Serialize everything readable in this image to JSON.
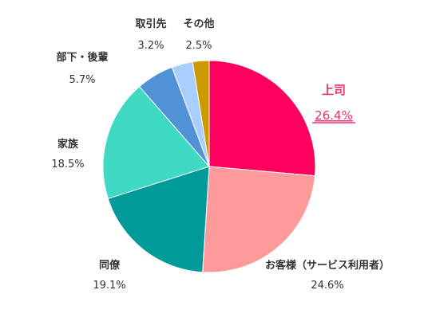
{
  "chart_data": {
    "type": "pie",
    "title": "",
    "start_angle": "12 o'clock",
    "direction": "clockwise",
    "highlight_color": "#e8336d",
    "slices": [
      {
        "label": "上司",
        "value": 26.4,
        "value_label": "26.4%",
        "color": "#ff005f",
        "highlight": true
      },
      {
        "label": "お客様（サービス利用者）",
        "value": 24.6,
        "value_label": "24.6%",
        "color": "#ff9a9a",
        "highlight": false
      },
      {
        "label": "同僚",
        "value": 19.1,
        "value_label": "19.1%",
        "color": "#009a99",
        "highlight": false
      },
      {
        "label": "家族",
        "value": 18.5,
        "value_label": "18.5%",
        "color": "#40d9c4",
        "highlight": false
      },
      {
        "label": "部下・後輩",
        "value": 5.7,
        "value_label": "5.7%",
        "color": "#4f92d6",
        "highlight": false
      },
      {
        "label": "取引先",
        "value": 3.2,
        "value_label": "3.2%",
        "color": "#a8cfff",
        "highlight": false
      },
      {
        "label": "その他",
        "value": 2.5,
        "value_label": "2.5%",
        "color": "#cc9a00",
        "highlight": false
      }
    ]
  }
}
